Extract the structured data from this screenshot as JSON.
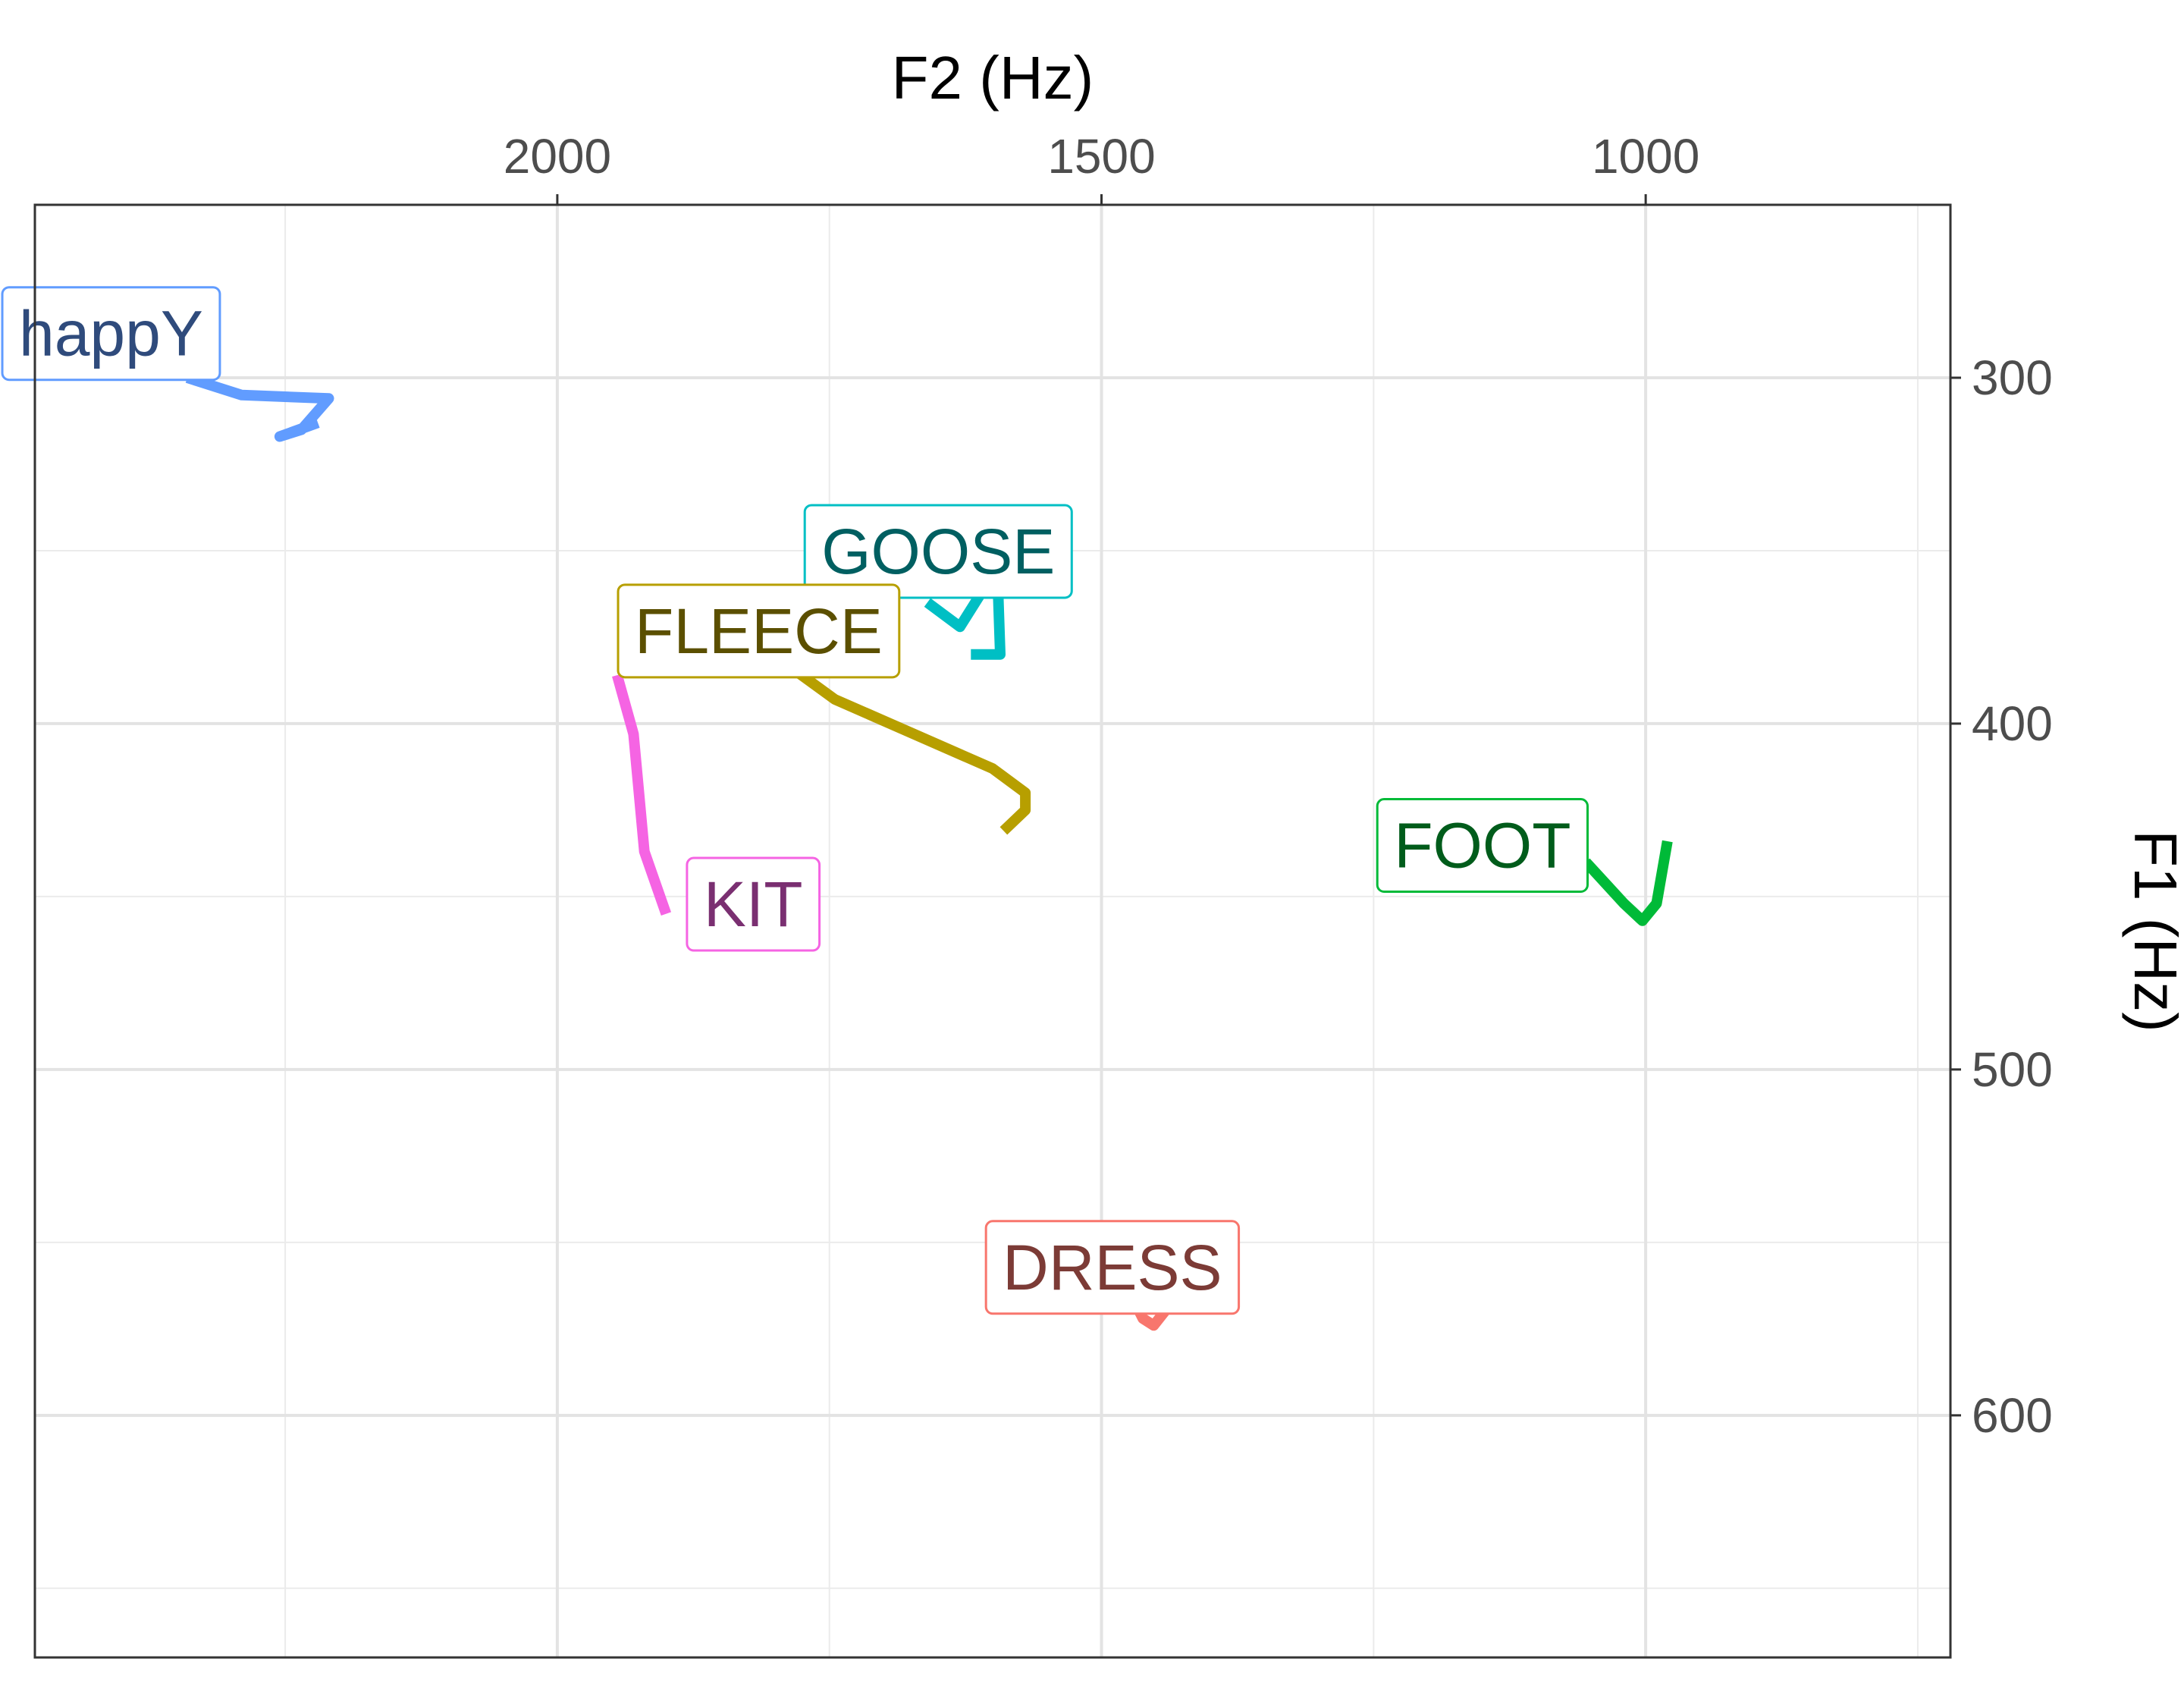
{
  "chart_data": {
    "type": "line",
    "title": "",
    "xlabel": "F2 (Hz)",
    "ylabel": "F1 (Hz)",
    "x_axis_position": "top",
    "y_axis_position": "right",
    "x_reversed": true,
    "y_reversed": true,
    "xlim": [
      2480,
      720
    ],
    "ylim": [
      250,
      670
    ],
    "x_ticks": [
      2000,
      1500,
      1000
    ],
    "x_tick_labels": [
      "2000",
      "1500",
      "1000"
    ],
    "y_ticks": [
      300,
      400,
      500,
      600
    ],
    "y_tick_labels": [
      "300",
      "400",
      "500",
      "600"
    ],
    "grid": true,
    "legend": "none",
    "series": [
      {
        "name": "happY",
        "color": "#619CFF",
        "text_color": "#2F4B7C",
        "label_anchor": [
          2410,
          287
        ],
        "points": [
          [
            2340,
            300
          ],
          [
            2290,
            305
          ],
          [
            2210,
            306
          ],
          [
            2235,
            315
          ],
          [
            2255,
            317
          ],
          [
            2220,
            313
          ]
        ]
      },
      {
        "name": "GOOSE",
        "color": "#00BFC4",
        "text_color": "#005F61",
        "label_anchor": [
          1650,
          350
        ],
        "points": [
          [
            1660,
            365
          ],
          [
            1630,
            372
          ],
          [
            1610,
            362
          ],
          [
            1595,
            362
          ],
          [
            1593,
            380
          ],
          [
            1620,
            380
          ]
        ]
      },
      {
        "name": "FLEECE",
        "color": "#B79F00",
        "text_color": "#5B4F00",
        "label_anchor": [
          1815,
          373
        ],
        "points": [
          [
            1780,
            385
          ],
          [
            1745,
            393
          ],
          [
            1600,
            413
          ],
          [
            1570,
            420
          ],
          [
            1570,
            425
          ],
          [
            1590,
            431
          ]
        ]
      },
      {
        "name": "KIT",
        "color": "#F564E3",
        "text_color": "#7A2F71",
        "label_anchor": [
          1820,
          452
        ],
        "points": [
          [
            1945,
            386
          ],
          [
            1930,
            403
          ],
          [
            1920,
            437
          ],
          [
            1900,
            455
          ]
        ]
      },
      {
        "name": "FOOT",
        "color": "#00BA38",
        "text_color": "#005C1B",
        "label_anchor": [
          1150,
          435
        ],
        "points": [
          [
            1055,
            440
          ],
          [
            1020,
            452
          ],
          [
            1003,
            457
          ],
          [
            990,
            452
          ],
          [
            980,
            434
          ]
        ]
      },
      {
        "name": "DRESS",
        "color": "#F8766D",
        "text_color": "#7C3B36",
        "label_anchor": [
          1490,
          557
        ],
        "points": [
          [
            1470,
            567
          ],
          [
            1462,
            572
          ],
          [
            1452,
            574
          ],
          [
            1442,
            570
          ],
          [
            1445,
            566
          ]
        ]
      }
    ]
  }
}
